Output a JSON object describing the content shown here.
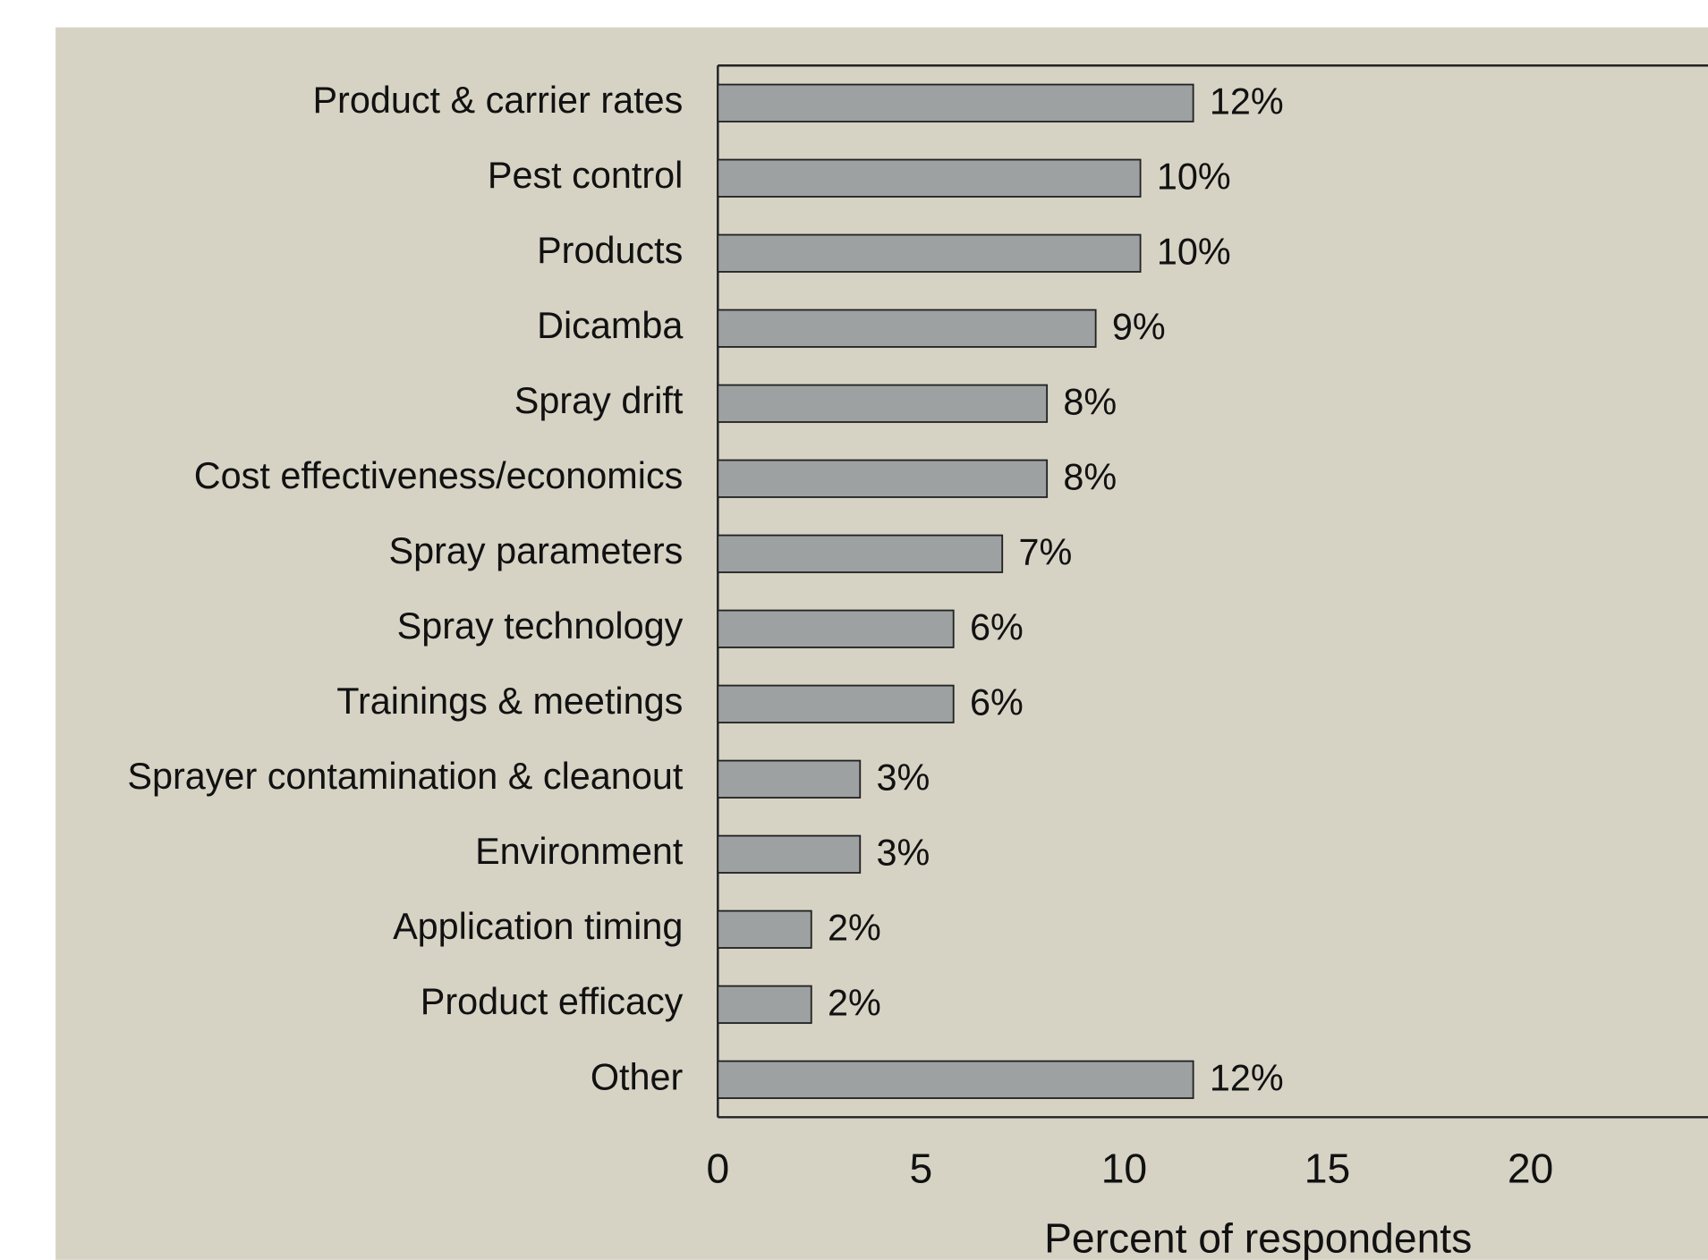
{
  "chart_data": {
    "type": "barh",
    "categories": [
      "Product & carrier rates",
      "Pest control",
      "Products",
      "Dicamba",
      "Spray drift",
      "Cost effectiveness/economics",
      "Spray parameters",
      "Spray technology",
      "Trainings & meetings",
      "Sprayer contamination & cleanout",
      "Environment",
      "Application timing",
      "Product efficacy",
      "Other"
    ],
    "values": [
      11.7,
      10.4,
      10.4,
      9.3,
      8.1,
      8.1,
      7.0,
      5.8,
      5.8,
      3.5,
      3.5,
      2.3,
      2.3,
      11.7
    ],
    "value_labels": [
      "12%",
      "10%",
      "10%",
      "9%",
      "8%",
      "8%",
      "7%",
      "6%",
      "6%",
      "3%",
      "3%",
      "2%",
      "2%",
      "12%"
    ],
    "color": "#9ea1a2",
    "xlim": [
      0,
      25
    ],
    "xticks": [
      0,
      5,
      10,
      15,
      20
    ],
    "xlabel": "Percent of respondents",
    "grid": false
  }
}
